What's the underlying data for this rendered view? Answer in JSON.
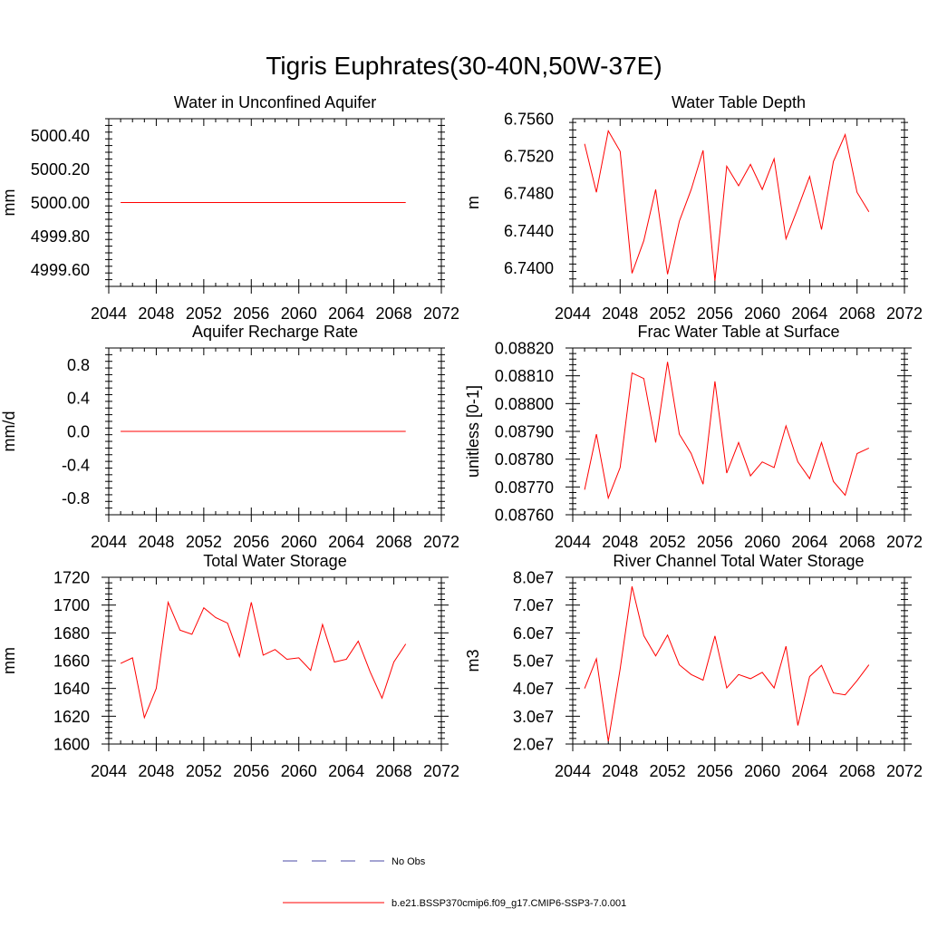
{
  "figure": {
    "title": "Tigris Euphrates(30-40N,50W-37E)"
  },
  "legend": {
    "obs_label": "No Obs",
    "obs_color": "#4a4aa6",
    "model_label": "b.e21.BSSP370cmip6.f09_g17.CMIP6-SSP3-7.0.001",
    "model_color": "#ff0000"
  },
  "chart_data": [
    {
      "type": "line",
      "title": "Water in Unconfined Aquifer",
      "ylabel": "mm",
      "xlim": [
        2044,
        2072
      ],
      "xticks": [
        2044,
        2048,
        2052,
        2056,
        2060,
        2064,
        2068,
        2072
      ],
      "ylim": [
        4999.5,
        5000.5
      ],
      "yticks": [
        4999.6,
        4999.8,
        5000.0,
        5000.2,
        5000.4
      ],
      "yticklabels": [
        "4999.60",
        "4999.80",
        "5000.00",
        "5000.20",
        "5000.40"
      ],
      "x": [
        2045,
        2046,
        2047,
        2048,
        2049,
        2050,
        2051,
        2052,
        2053,
        2054,
        2055,
        2056,
        2057,
        2058,
        2059,
        2060,
        2061,
        2062,
        2063,
        2064,
        2065,
        2066,
        2067,
        2068,
        2069
      ],
      "series": [
        {
          "values": [
            5000,
            5000,
            5000,
            5000,
            5000,
            5000,
            5000,
            5000,
            5000,
            5000,
            5000,
            5000,
            5000,
            5000,
            5000,
            5000,
            5000,
            5000,
            5000,
            5000,
            5000,
            5000,
            5000,
            5000,
            5000
          ]
        }
      ]
    },
    {
      "type": "line",
      "title": "Water Table Depth",
      "ylabel": "m",
      "xlim": [
        2044,
        2072
      ],
      "xticks": [
        2044,
        2048,
        2052,
        2056,
        2060,
        2064,
        2068,
        2072
      ],
      "ylim": [
        6.738,
        6.756
      ],
      "yticks": [
        6.74,
        6.744,
        6.748,
        6.752,
        6.756
      ],
      "yticklabels": [
        "6.7400",
        "6.7440",
        "6.7480",
        "6.7520",
        "6.7560"
      ],
      "x": [
        2045,
        2046,
        2047,
        2048,
        2049,
        2050,
        2051,
        2052,
        2053,
        2054,
        2055,
        2056,
        2057,
        2058,
        2059,
        2060,
        2061,
        2062,
        2063,
        2064,
        2065,
        2066,
        2067,
        2068,
        2069
      ],
      "series": [
        {
          "values": [
            6.7533,
            6.7481,
            6.7547,
            6.7525,
            6.7394,
            6.7429,
            6.7484,
            6.7393,
            6.745,
            6.7484,
            6.7526,
            6.7386,
            6.7509,
            6.7488,
            6.7511,
            6.7484,
            6.7517,
            6.7431,
            6.7464,
            6.7498,
            6.7441,
            6.7514,
            6.7543,
            6.7481,
            6.746
          ]
        }
      ]
    },
    {
      "type": "line",
      "title": "Aquifer Recharge Rate",
      "ylabel": "mm/d",
      "xlim": [
        2044,
        2072
      ],
      "xticks": [
        2044,
        2048,
        2052,
        2056,
        2060,
        2064,
        2068,
        2072
      ],
      "ylim": [
        -1.0,
        1.0
      ],
      "yticks": [
        -0.8,
        -0.4,
        0.0,
        0.4,
        0.8
      ],
      "yticklabels": [
        "-0.8",
        "-0.4",
        "0.0",
        "0.4",
        "0.8"
      ],
      "x": [
        2045,
        2046,
        2047,
        2048,
        2049,
        2050,
        2051,
        2052,
        2053,
        2054,
        2055,
        2056,
        2057,
        2058,
        2059,
        2060,
        2061,
        2062,
        2063,
        2064,
        2065,
        2066,
        2067,
        2068,
        2069
      ],
      "series": [
        {
          "values": [
            0,
            0,
            0,
            0,
            0,
            0,
            0,
            0,
            0,
            0,
            0,
            0,
            0,
            0,
            0,
            0,
            0,
            0,
            0,
            0,
            0,
            0,
            0,
            0,
            0
          ]
        }
      ]
    },
    {
      "type": "line",
      "title": "Frac Water Table at Surface",
      "ylabel": "unitless [0-1]",
      "xlim": [
        2044,
        2072
      ],
      "xticks": [
        2044,
        2048,
        2052,
        2056,
        2060,
        2064,
        2068,
        2072
      ],
      "ylim": [
        0.0876,
        0.0882
      ],
      "yticks": [
        0.0876,
        0.0877,
        0.0878,
        0.0879,
        0.088,
        0.0881,
        0.0882
      ],
      "yticklabels": [
        "0.08760",
        "0.08770",
        "0.08780",
        "0.08790",
        "0.08800",
        "0.08810",
        "0.08820"
      ],
      "x": [
        2045,
        2046,
        2047,
        2048,
        2049,
        2050,
        2051,
        2052,
        2053,
        2054,
        2055,
        2056,
        2057,
        2058,
        2059,
        2060,
        2061,
        2062,
        2063,
        2064,
        2065,
        2066,
        2067,
        2068,
        2069
      ],
      "series": [
        {
          "values": [
            0.08769,
            0.08789,
            0.08766,
            0.08777,
            0.08811,
            0.08809,
            0.08786,
            0.08815,
            0.08789,
            0.08782,
            0.08771,
            0.08808,
            0.08775,
            0.08786,
            0.08774,
            0.08779,
            0.08777,
            0.08792,
            0.08779,
            0.08773,
            0.08786,
            0.08772,
            0.08767,
            0.08782,
            0.08784
          ]
        }
      ]
    },
    {
      "type": "line",
      "title": "Total Water Storage",
      "ylabel": "mm",
      "xlim": [
        2044,
        2072
      ],
      "xticks": [
        2044,
        2048,
        2052,
        2056,
        2060,
        2064,
        2068,
        2072
      ],
      "ylim": [
        1600,
        1720
      ],
      "yticks": [
        1600,
        1620,
        1640,
        1660,
        1680,
        1700,
        1720
      ],
      "yticklabels": [
        "1600",
        "1620",
        "1640",
        "1660",
        "1680",
        "1700",
        "1720"
      ],
      "x": [
        2045,
        2046,
        2047,
        2048,
        2049,
        2050,
        2051,
        2052,
        2053,
        2054,
        2055,
        2056,
        2057,
        2058,
        2059,
        2060,
        2061,
        2062,
        2063,
        2064,
        2065,
        2066,
        2067,
        2068,
        2069
      ],
      "series": [
        {
          "values": [
            1658,
            1662,
            1619,
            1640,
            1702,
            1682,
            1679,
            1698,
            1691,
            1687,
            1663,
            1702,
            1664,
            1668,
            1661,
            1662,
            1653,
            1686,
            1659,
            1661,
            1674,
            1652,
            1633,
            1659,
            1672
          ]
        }
      ]
    },
    {
      "type": "line",
      "title": "River Channel Total Water Storage",
      "ylabel": "m3",
      "xlim": [
        2044,
        2072
      ],
      "xticks": [
        2044,
        2048,
        2052,
        2056,
        2060,
        2064,
        2068,
        2072
      ],
      "ylim": [
        20000000,
        80000000
      ],
      "yticks": [
        20000000,
        30000000,
        40000000,
        50000000,
        60000000,
        70000000,
        80000000
      ],
      "yticklabels": [
        "2.0e7",
        "3.0e7",
        "4.0e7",
        "5.0e7",
        "6.0e7",
        "7.0e7",
        "8.0e7"
      ],
      "x": [
        2045,
        2046,
        2047,
        2048,
        2049,
        2050,
        2051,
        2052,
        2053,
        2054,
        2055,
        2056,
        2057,
        2058,
        2059,
        2060,
        2061,
        2062,
        2063,
        2064,
        2065,
        2066,
        2067,
        2068,
        2069
      ],
      "series": [
        {
          "values": [
            40000000,
            50700000,
            21000000,
            47000000,
            76700000,
            59000000,
            51700000,
            59200000,
            48500000,
            45000000,
            43000000,
            58900000,
            40200000,
            45000000,
            43500000,
            45800000,
            40200000,
            55200000,
            26700000,
            44300000,
            48300000,
            38400000,
            37700000,
            42800000,
            48500000
          ]
        }
      ]
    }
  ]
}
